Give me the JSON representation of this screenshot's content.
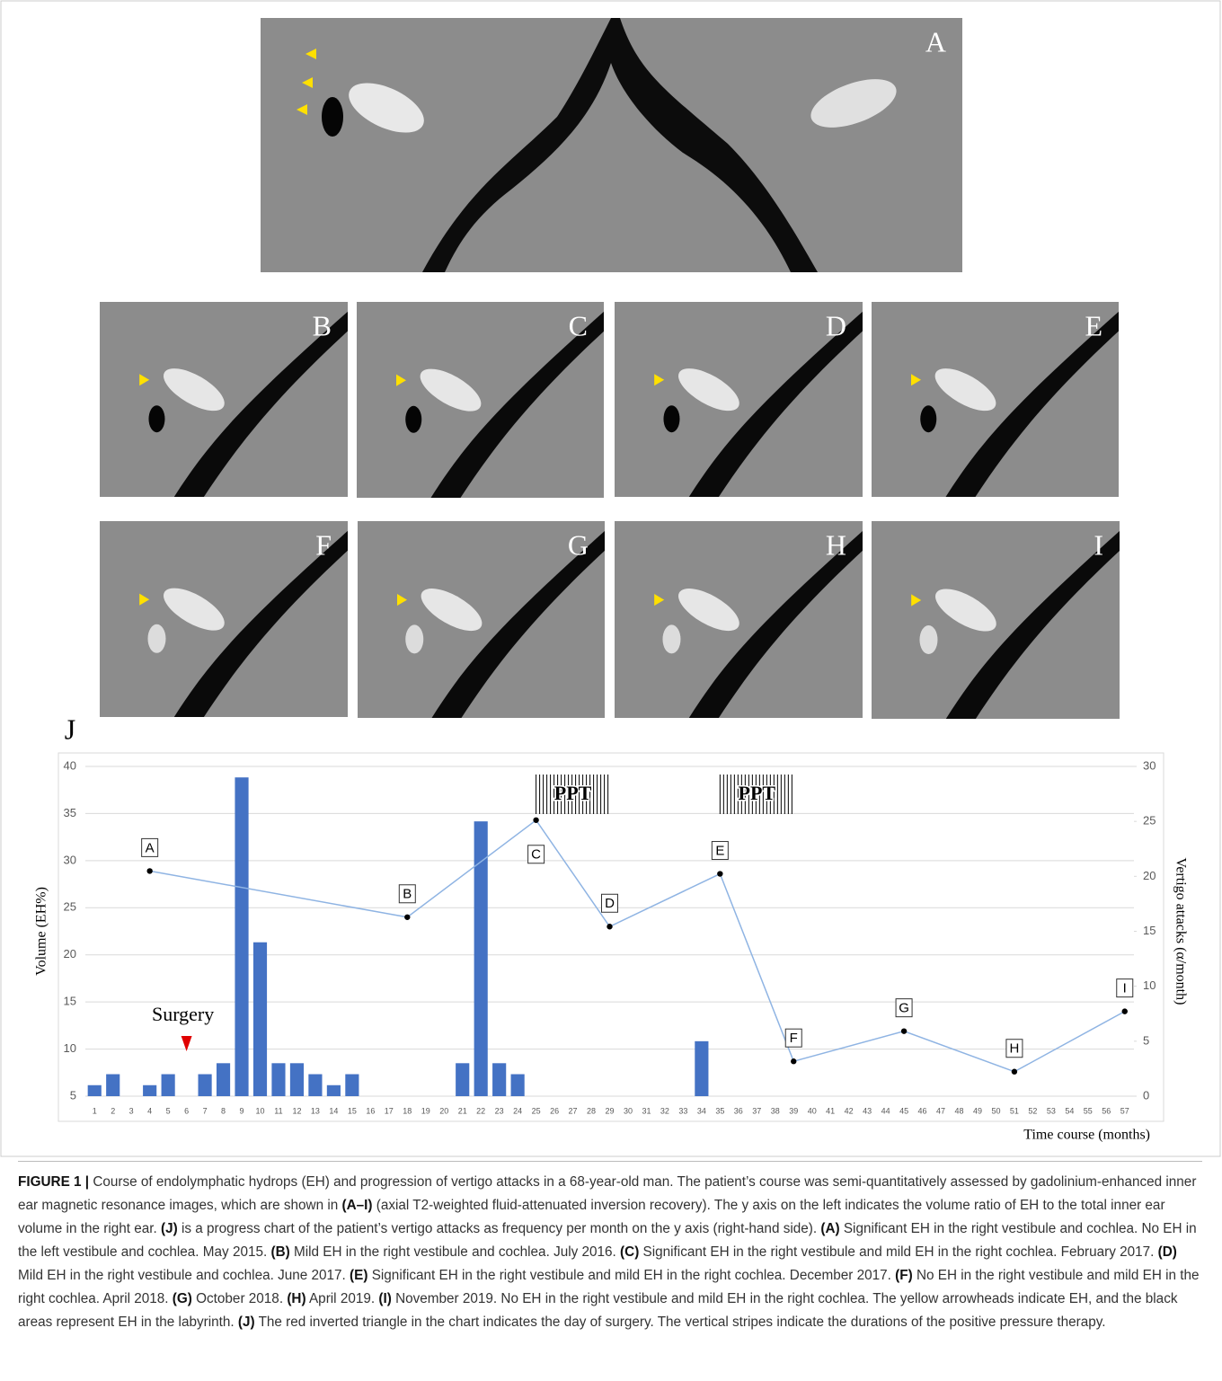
{
  "figure": {
    "panels": [
      "A",
      "B",
      "C",
      "D",
      "E",
      "F",
      "G",
      "H",
      "I"
    ]
  },
  "chart_data": {
    "type": "combo",
    "panel": "J",
    "ylabel": "Volume (EH%)",
    "y2label": "Vertigo attacks (α/month)",
    "xlabel": "Time course (months)",
    "categories": [
      1,
      2,
      3,
      4,
      5,
      6,
      7,
      8,
      9,
      10,
      11,
      12,
      13,
      14,
      15,
      16,
      17,
      18,
      19,
      20,
      21,
      22,
      23,
      24,
      25,
      26,
      27,
      28,
      29,
      30,
      31,
      32,
      33,
      34,
      35,
      36,
      37,
      38,
      39,
      40,
      41,
      42,
      43,
      44,
      45,
      46,
      47,
      48,
      49,
      50,
      51,
      52,
      53,
      54,
      55,
      56,
      57
    ],
    "series": [
      {
        "kind": "bar",
        "axis": "y2",
        "color": "#4472c4",
        "values": [
          1,
          2,
          0,
          1,
          2,
          0,
          2,
          3,
          29,
          14,
          3,
          3,
          2,
          1,
          2,
          0,
          0,
          0,
          0,
          0,
          3,
          25,
          3,
          2,
          0,
          0,
          0,
          0,
          0,
          0,
          0,
          0,
          0,
          5,
          0,
          0,
          0,
          0,
          0,
          0,
          0,
          0,
          0,
          0,
          0,
          0,
          0,
          0,
          0,
          0,
          0,
          0,
          0,
          0,
          0,
          0,
          0
        ]
      },
      {
        "kind": "line",
        "color": "#8fb4e3",
        "x": [
          4,
          18,
          25,
          29,
          35,
          39,
          45,
          51,
          57
        ],
        "values": [
          28.9,
          24,
          34.3,
          23,
          28.6,
          8.7,
          11.9,
          7.6,
          14
        ],
        "point_labels": [
          "A",
          "B",
          "C",
          "D",
          "E",
          "F",
          "G",
          "H",
          "I"
        ]
      }
    ],
    "ylim": [
      5,
      40
    ],
    "yticks": [
      5,
      10,
      15,
      20,
      25,
      30,
      35,
      40
    ],
    "y2lim": [
      0,
      30
    ],
    "y2ticks": [
      0,
      5,
      10,
      15,
      20,
      25,
      30
    ],
    "grid": true,
    "annotations": {
      "surgery": {
        "label": "Surgery",
        "x": 6,
        "color": "#e00000"
      },
      "ppt": [
        {
          "label": "PPT",
          "start": 25,
          "end": 29
        },
        {
          "label": "PPT",
          "start": 35,
          "end": 39
        }
      ]
    }
  },
  "caption": {
    "label": "FIGURE 1 |",
    "parts": [
      " Course of endolymphatic hydrops (EH) and progression of vertigo attacks in a 68-year-old man. The patient’s course was semi-quantitatively assessed by gadolinium-enhanced inner ear magnetic resonance images, which are shown in ",
      {
        "bold": "(A–I)"
      },
      " (axial T2-weighted fluid-attenuated inversion recovery). The y axis on the left indicates the volume ratio of EH to the total inner ear volume in the right ear. ",
      {
        "bold": "(J)"
      },
      " is a progress chart of the patient’s vertigo attacks as frequency per month on the y axis (right-hand side). ",
      {
        "bold": "(A)"
      },
      " Significant EH in the right vestibule and cochlea. No EH in the left vestibule and cochlea. May 2015. ",
      {
        "bold": "(B)"
      },
      " Mild EH in the right vestibule and cochlea. July 2016. ",
      {
        "bold": "(C)"
      },
      " Significant EH in the right vestibule and mild EH in the right cochlea. February 2017. ",
      {
        "bold": "(D)"
      },
      " Mild EH in the right vestibule and cochlea. June 2017. ",
      {
        "bold": "(E)"
      },
      " Significant EH in the right vestibule and mild EH in the right cochlea. December 2017. ",
      {
        "bold": "(F)"
      },
      " No EH in the right vestibule and mild EH in the right cochlea. April 2018. ",
      {
        "bold": "(G)"
      },
      " October 2018. ",
      {
        "bold": "(H)"
      },
      " April 2019. ",
      {
        "bold": "(I)"
      },
      " November 2019. No EH in the right vestibule and mild EH in the right cochlea. The yellow arrowheads indicate EH, and the black areas represent EH in the labyrinth. ",
      {
        "bold": "(J)"
      },
      " The red inverted triangle in the chart indicates the day of surgery. The vertical stripes indicate the durations of the positive pressure therapy."
    ]
  }
}
